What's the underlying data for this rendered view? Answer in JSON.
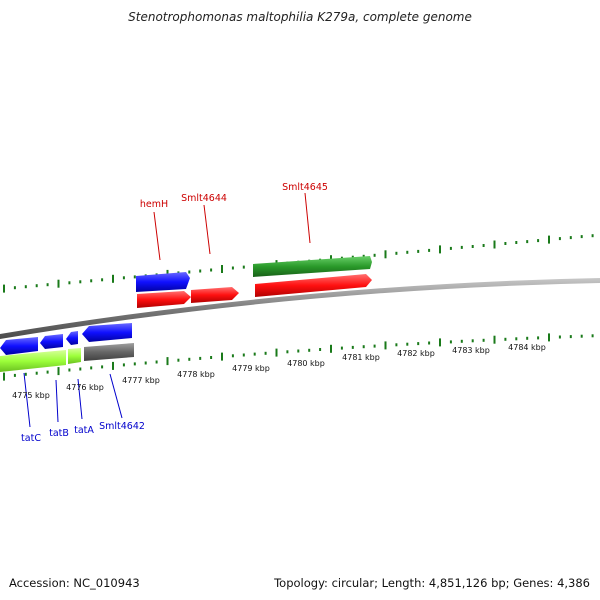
{
  "title": "Stenotrophomonas maltophilia K279a, complete genome",
  "footer": {
    "accession": "Accession: NC_010943",
    "summary": "Topology: circular; Length: 4,851,126 bp; Genes: 4,386"
  },
  "scale_labels": [
    "4775 kbp",
    "4776 kbp",
    "4777 kbp",
    "4778 kbp",
    "4779 kbp",
    "4780 kbp",
    "4781 kbp",
    "4782 kbp",
    "4783 kbp",
    "4784 kbp"
  ],
  "gene_labels": {
    "forward": [
      "hemH",
      "Smlt4644",
      "Smlt4645"
    ],
    "reverse": [
      "tatC",
      "tatB",
      "tatA",
      "Smlt4642"
    ]
  },
  "colors": {
    "backbone": "#7a7a7a",
    "forward_cds": "#ff2020",
    "reverse_cds": "#1a1aff",
    "rrna": "#2a9a2a",
    "pseudo": "#666666",
    "gene_green": "#a0ff40",
    "tick": "#1a7a1a",
    "label_red": "#cc0000",
    "label_blue": "#0000cc"
  }
}
